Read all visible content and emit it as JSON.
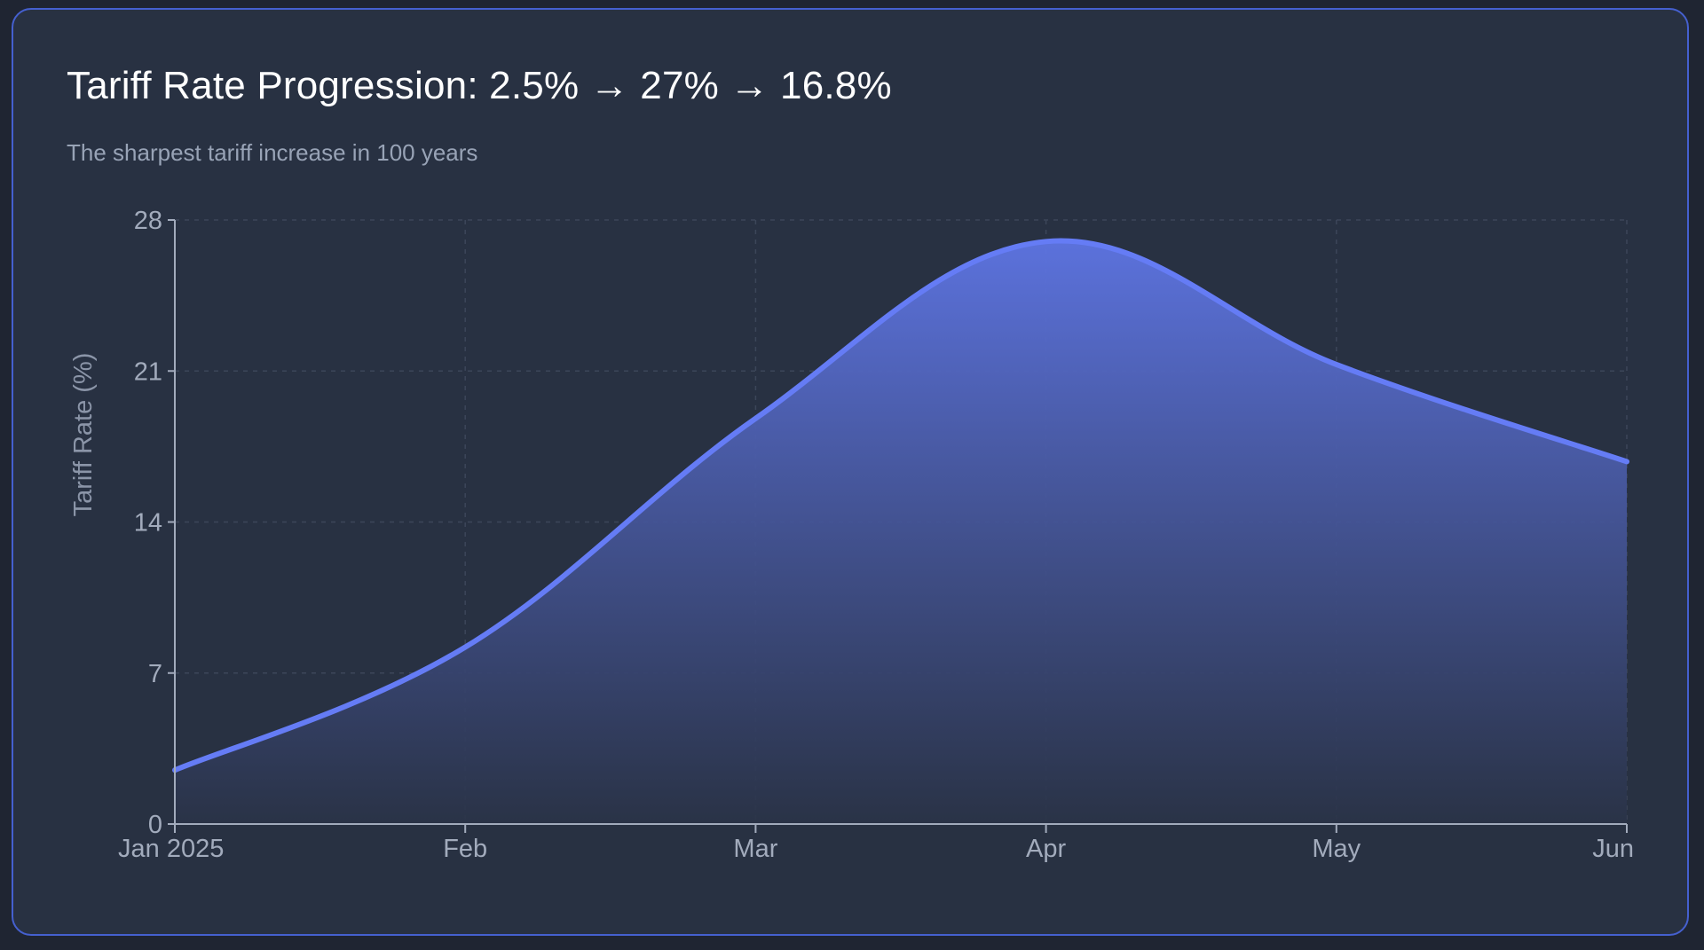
{
  "chart_data": {
    "type": "area",
    "title": "Tariff Rate Progression: 2.5% → 27% → 16.8%",
    "subtitle": "The sharpest tariff increase in 100 years",
    "xlabel": "",
    "ylabel": "Tariff Rate (%)",
    "categories": [
      "Jan 2025",
      "Feb",
      "Mar",
      "Apr",
      "May",
      "Jun"
    ],
    "values": [
      2.5,
      8.2,
      18.8,
      27.0,
      21.3,
      16.8
    ],
    "ylim": [
      0,
      28
    ],
    "yticks": [
      0,
      7,
      14,
      21,
      28
    ],
    "grid": true,
    "legend": "none",
    "colors": {
      "line": "#657cf5",
      "fill_top": "#5e75e4",
      "fill_bottom": "#2a3347",
      "grid": "#3c4659",
      "axis": "#a2abbc",
      "card_border": "#4560cf"
    }
  }
}
